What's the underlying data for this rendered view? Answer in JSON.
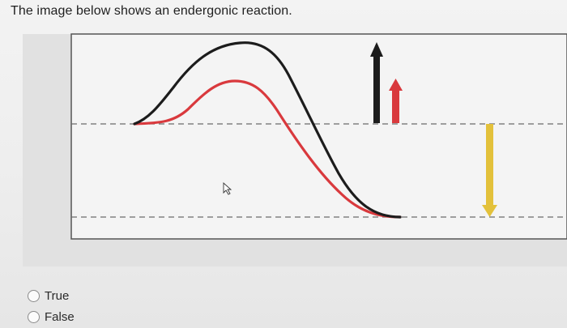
{
  "question": {
    "text": "The image below shows an endergonic reaction."
  },
  "diagram": {
    "colors": {
      "black_curve": "#1c1c1c",
      "red_curve": "#d9393d",
      "black_arrow": "#1c1c1c",
      "red_arrow": "#d9393d",
      "yellow_arrow": "#e3c13b",
      "dashed_lines": "#6b6b6b",
      "panel_background": "#e1e1e1",
      "plot_background": "#f4f4f4",
      "plot_border": "#555555"
    },
    "icons": [
      "up-arrow-black",
      "up-arrow-red",
      "down-arrow-yellow",
      "mouse-cursor-icon"
    ]
  },
  "answers": {
    "options": [
      {
        "label": "True",
        "selected": false
      },
      {
        "label": "False",
        "selected": false
      }
    ]
  }
}
